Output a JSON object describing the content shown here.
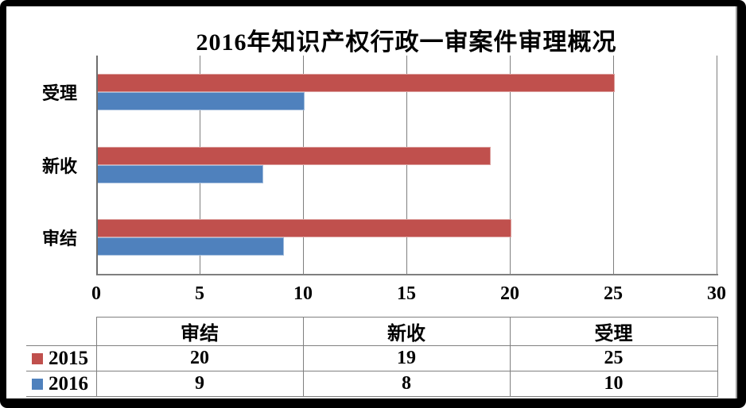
{
  "title": "2016年知识产权行政一审案件审理概况",
  "chart_data": {
    "type": "bar",
    "orientation": "horizontal",
    "title": "2016年知识产权行政一审案件审理概况",
    "categories": [
      "受理",
      "新收",
      "审结"
    ],
    "series": [
      {
        "name": "2015",
        "color": "#C0504D",
        "values": [
          25,
          19,
          20
        ]
      },
      {
        "name": "2016",
        "color": "#4F81BD",
        "values": [
          10,
          8,
          9
        ]
      }
    ],
    "xlim": [
      0,
      30
    ],
    "x_ticks": [
      0,
      5,
      10,
      15,
      20,
      25,
      30
    ],
    "grid": true,
    "legend_position": "data-table-bottom"
  },
  "data_table": {
    "corner_label": "",
    "columns": [
      "审结",
      "新收",
      "受理"
    ],
    "rows": [
      {
        "label": "2015",
        "swatch_color": "#C0504D",
        "values": [
          "20",
          "19",
          "25"
        ]
      },
      {
        "label": "2016",
        "swatch_color": "#4F81BD",
        "values": [
          "9",
          "8",
          "10"
        ]
      }
    ]
  },
  "colors": {
    "series_2015": "#C0504D",
    "series_2016": "#4F81BD",
    "gridline": "#7F7F7F",
    "axis": "#6E6E6E",
    "table_border": "#808080",
    "frame": "#000000",
    "plot_background": "#FFFFFF"
  }
}
